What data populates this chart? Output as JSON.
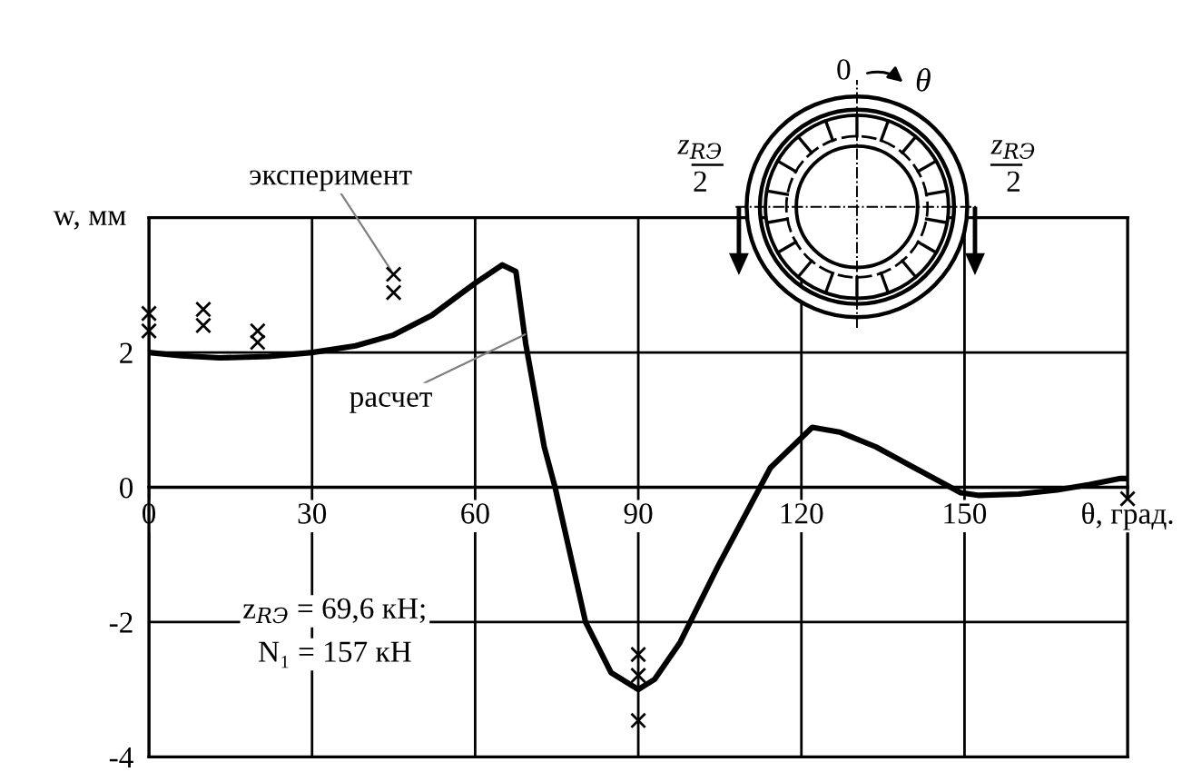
{
  "chart_data": {
    "type": "line",
    "ylabel": "w, мм",
    "xlabel": "θ, град.",
    "xlim": [
      0,
      180
    ],
    "ylim": [
      -4,
      4
    ],
    "xticks": [
      0,
      30,
      60,
      90,
      120,
      150
    ],
    "yticks": [
      -4,
      -2,
      0,
      2
    ],
    "grid": true,
    "legend": false,
    "series": [
      {
        "color": "#000000",
        "marker": "none",
        "line_style": "solid",
        "x": [
          0,
          6,
          13,
          22,
          30,
          38,
          45,
          52,
          60,
          65,
          67.5,
          69.3,
          72.7,
          74.7,
          80.3,
          85,
          90,
          93,
          97.7,
          104.6,
          114.3,
          122,
          127,
          133.7,
          141,
          149.3,
          152.7,
          160,
          167,
          173,
          178.7,
          180
        ],
        "values": [
          2.0,
          1.95,
          1.92,
          1.94,
          2.0,
          2.1,
          2.26,
          2.55,
          3.03,
          3.3,
          3.2,
          2.13,
          0.6,
          0.0,
          -2.0,
          -2.75,
          -3.0,
          -2.85,
          -2.3,
          -1.18,
          0.29,
          0.89,
          0.82,
          0.6,
          0.28,
          -0.08,
          -0.12,
          -0.1,
          -0.04,
          0.04,
          0.13,
          0.13
        ]
      },
      {
        "type": "scatter",
        "color": "#000000",
        "marker": "cross",
        "x": [
          0,
          0,
          10,
          10,
          20,
          20,
          45,
          45,
          90,
          90,
          90,
          180
        ],
        "values": [
          2.58,
          2.32,
          2.64,
          2.4,
          2.32,
          2.15,
          3.16,
          2.89,
          -2.48,
          -2.79,
          -3.46,
          -0.17
        ]
      }
    ],
    "annotations": [
      {
        "text": "эксперимент",
        "x": 45,
        "y": 3.16
      },
      {
        "text": "расчет",
        "x": 70,
        "y": 2.3
      },
      "z$_{RЭ}$ = 69,6 кН;",
      "N₁ = 157 кН",
      "0",
      "θ",
      "z$_{RЭ}$",
      "2",
      "z$_{RЭ}$",
      "2"
    ]
  }
}
